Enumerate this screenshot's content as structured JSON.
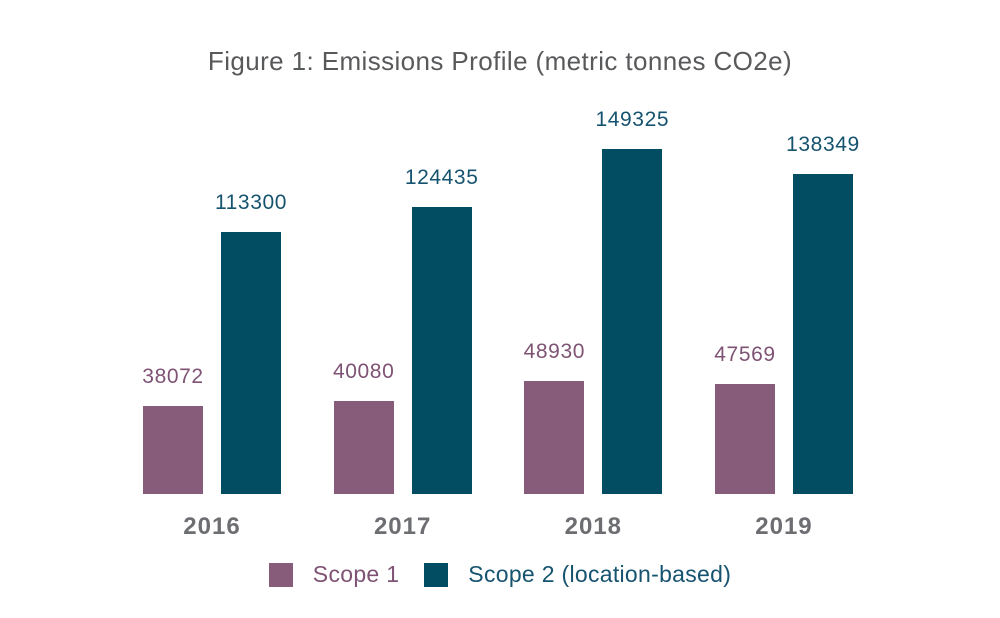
{
  "figure": {
    "title": "Figure 1: Emissions Profile (metric tonnes CO2e)"
  },
  "chart_data": {
    "type": "bar",
    "title": "Figure 1: Emissions Profile (metric tonnes CO2e)",
    "categories": [
      "2016",
      "2017",
      "2018",
      "2019"
    ],
    "series": [
      {
        "name": "Scope 1",
        "values": [
          38072,
          40080,
          48930,
          47569
        ],
        "color": "#875C7B",
        "label_color": "#7E5374"
      },
      {
        "name": "Scope 2 (location-based)",
        "values": [
          113300,
          124435,
          149325,
          138349
        ],
        "color": "#034D63",
        "label_color": "#16536F"
      }
    ],
    "xlabel": "",
    "ylabel": "",
    "ylim": [
      0,
      149325
    ],
    "grid": false,
    "axes_visible": false,
    "value_labels": true,
    "legend_position": "bottom"
  },
  "colors": {
    "background": "#FFFFFF",
    "title_text": "#58595B",
    "axis_text": "#6D6E71"
  }
}
